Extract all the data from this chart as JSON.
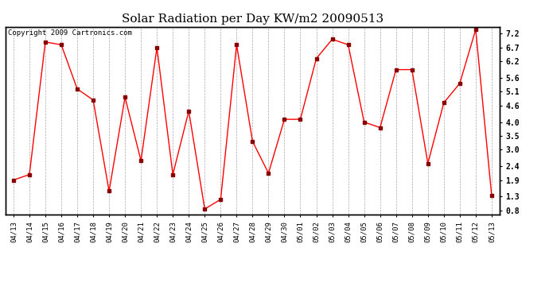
{
  "title": "Solar Radiation per Day KW/m2 20090513",
  "copyright": "Copyright 2009 Cartronics.com",
  "dates": [
    "04/13",
    "04/14",
    "04/15",
    "04/16",
    "04/17",
    "04/18",
    "04/19",
    "04/20",
    "04/21",
    "04/22",
    "04/23",
    "04/24",
    "04/25",
    "04/26",
    "04/27",
    "04/28",
    "04/29",
    "04/30",
    "05/01",
    "05/02",
    "05/03",
    "05/04",
    "05/05",
    "05/06",
    "05/07",
    "05/08",
    "05/09",
    "05/10",
    "05/11",
    "05/12",
    "05/13"
  ],
  "values": [
    1.9,
    2.1,
    6.9,
    6.8,
    5.2,
    4.8,
    1.5,
    4.9,
    2.6,
    6.7,
    2.1,
    4.4,
    0.85,
    1.2,
    6.8,
    3.3,
    2.15,
    4.1,
    4.1,
    6.3,
    7.0,
    6.8,
    4.0,
    3.8,
    5.9,
    5.9,
    2.5,
    4.7,
    5.4,
    7.35,
    1.35
  ],
  "line_color": "#ff0000",
  "marker_color": "#880000",
  "bg_color": "#ffffff",
  "plot_bg_color": "#ffffff",
  "grid_color": "#aaaaaa",
  "yticks": [
    0.8,
    1.3,
    1.9,
    2.4,
    3.0,
    3.5,
    4.0,
    4.6,
    5.1,
    5.6,
    6.2,
    6.7,
    7.2
  ],
  "ylim": [
    0.65,
    7.45
  ],
  "title_fontsize": 11,
  "tick_fontsize": 6.5,
  "copyright_fontsize": 6.5
}
